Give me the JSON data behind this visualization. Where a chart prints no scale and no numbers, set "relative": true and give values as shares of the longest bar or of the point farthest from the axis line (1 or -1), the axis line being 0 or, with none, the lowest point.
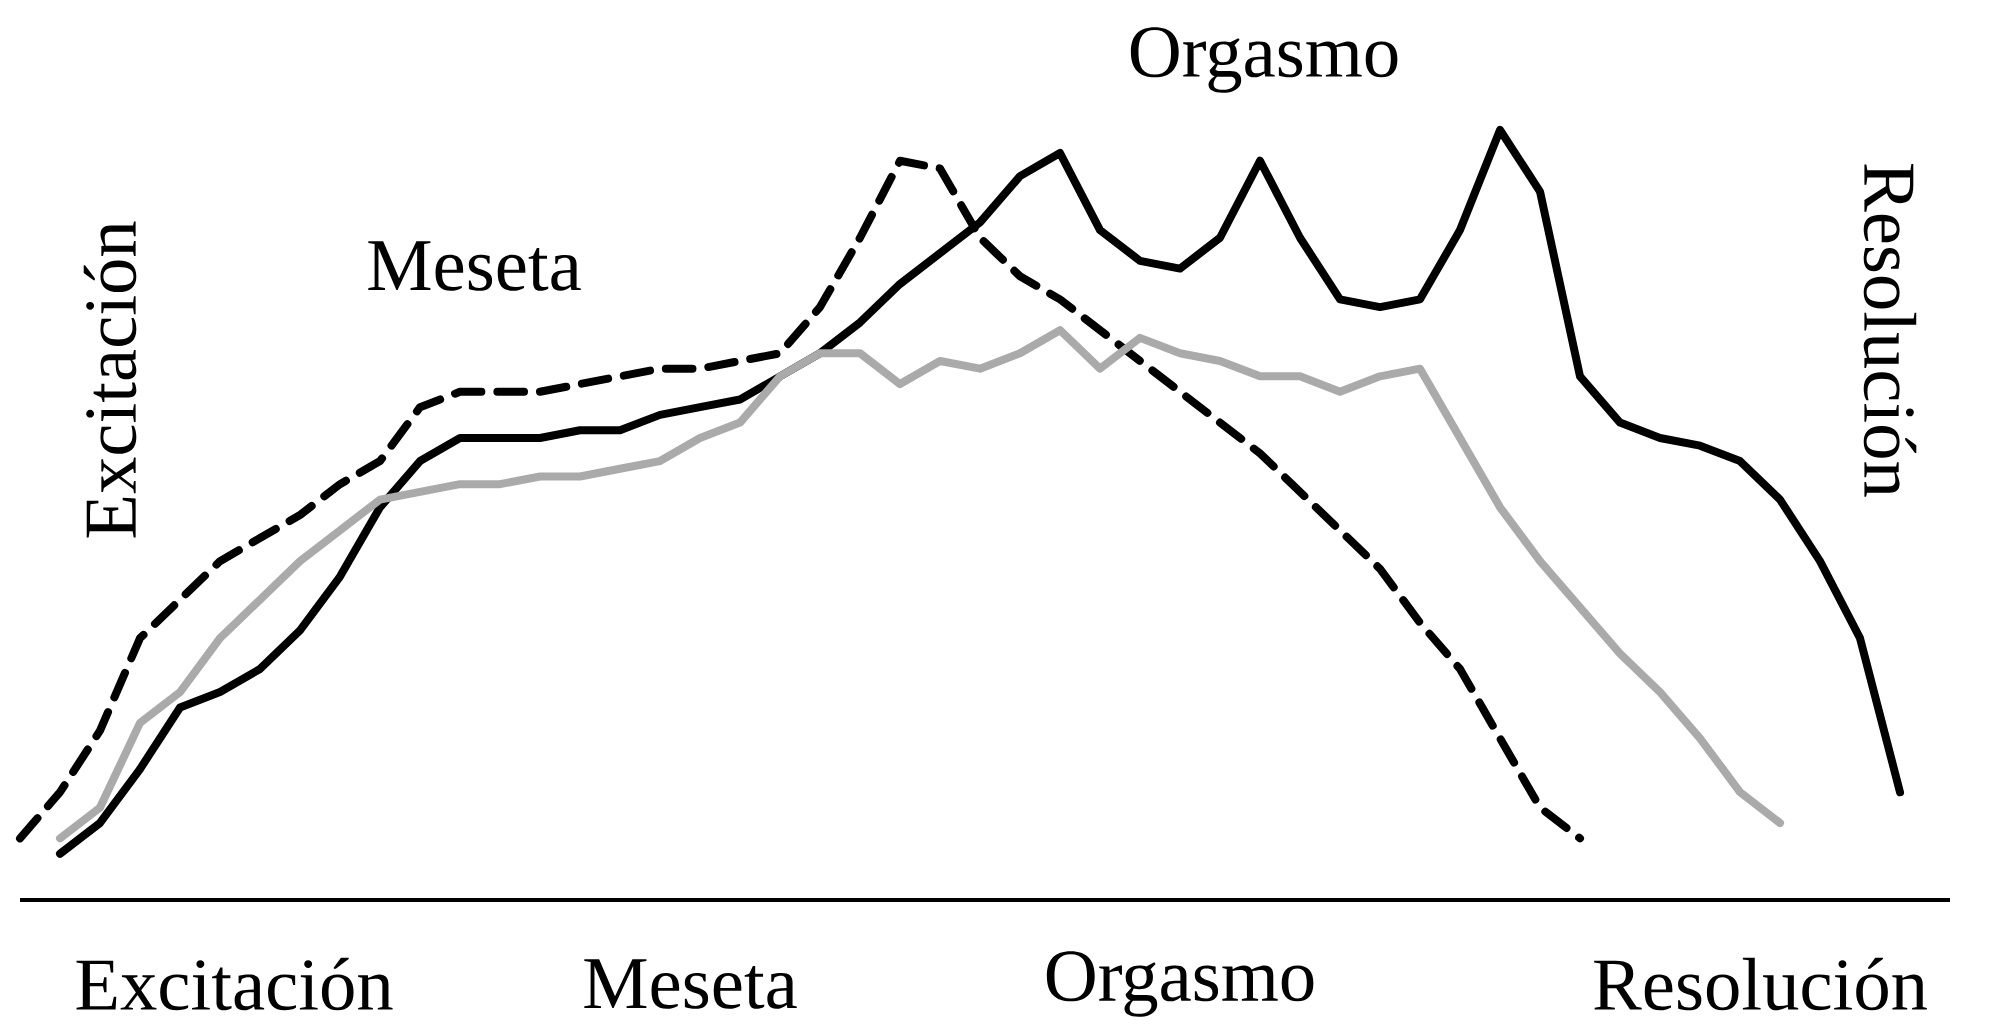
{
  "chart_data": {
    "type": "line",
    "relative": true,
    "categories": [
      null,
      null,
      null,
      null,
      null,
      null,
      null,
      null,
      null,
      null,
      null,
      null,
      null,
      null,
      null,
      null,
      null,
      null,
      null,
      null,
      null,
      null,
      null,
      null,
      null,
      null,
      null,
      null,
      null,
      null,
      null,
      null,
      null,
      null,
      null,
      null,
      null,
      null,
      null,
      null,
      null,
      null,
      null,
      null,
      null,
      null,
      null,
      null,
      null
    ],
    "series": [
      {
        "color": "#000000",
        "line_style": "dashed",
        "values": [
          0.08,
          0.14,
          0.22,
          0.34,
          0.39,
          0.44,
          0.47,
          0.5,
          0.54,
          0.57,
          0.64,
          0.66,
          0.66,
          0.66,
          0.67,
          0.68,
          0.69,
          0.69,
          0.7,
          0.71,
          0.77,
          0.86,
          0.96,
          0.95,
          0.86,
          0.81,
          0.78,
          0.74,
          0.7,
          0.66,
          0.62,
          0.58,
          0.53,
          0.48,
          0.43,
          0.36,
          0.3,
          0.21,
          0.12,
          0.08,
          null,
          null,
          null,
          null,
          null,
          null,
          null,
          null,
          null
        ]
      },
      {
        "color": "#000000",
        "line_style": "solid",
        "values": [
          null,
          0.06,
          0.1,
          0.17,
          0.25,
          0.27,
          0.3,
          0.35,
          0.42,
          0.51,
          0.57,
          0.6,
          0.6,
          0.6,
          0.61,
          0.61,
          0.63,
          0.64,
          0.65,
          0.68,
          0.71,
          0.75,
          0.8,
          0.84,
          0.88,
          0.94,
          0.97,
          0.87,
          0.83,
          0.82,
          0.86,
          0.96,
          0.86,
          0.78,
          0.77,
          0.78,
          0.87,
          1.0,
          0.92,
          0.68,
          0.62,
          0.6,
          0.59,
          0.57,
          0.52,
          0.44,
          0.34,
          0.14,
          null
        ]
      },
      {
        "color": "#aaaaaa",
        "line_style": "solid",
        "values": [
          null,
          0.08,
          0.12,
          0.23,
          0.27,
          0.34,
          0.39,
          0.44,
          0.48,
          0.52,
          0.53,
          0.54,
          0.54,
          0.55,
          0.55,
          0.56,
          0.57,
          0.6,
          0.62,
          0.68,
          0.71,
          0.71,
          0.67,
          0.7,
          0.69,
          0.71,
          0.74,
          0.69,
          0.73,
          0.71,
          0.7,
          0.68,
          0.68,
          0.66,
          0.68,
          0.69,
          0.6,
          0.51,
          0.44,
          0.38,
          0.32,
          0.27,
          0.21,
          0.14,
          0.1,
          null,
          null,
          null,
          null
        ]
      }
    ],
    "annotations": [
      "Excitación",
      "Meseta",
      "Orgasmo",
      "Resolución",
      "Excitación",
      "Meseta",
      "Orgasmo",
      "Resolución"
    ]
  }
}
